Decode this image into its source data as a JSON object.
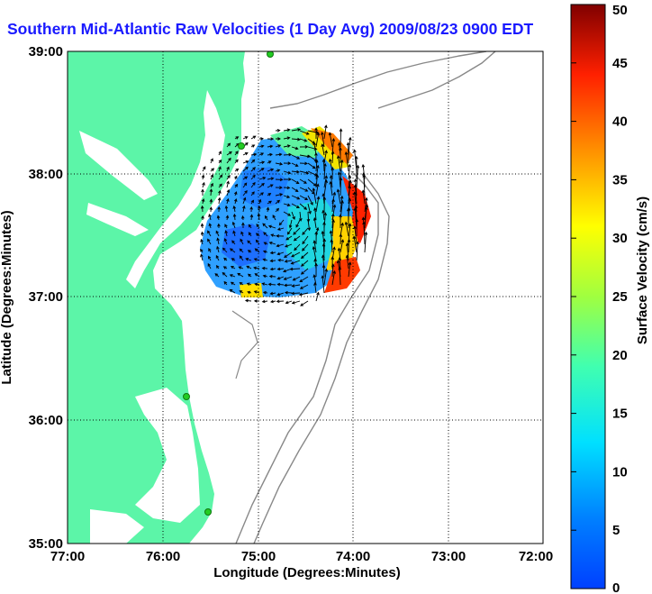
{
  "title": "Southern Mid-Atlantic Raw Velocities (1 Day Avg) 2009/08/23 0900 EDT",
  "map": {
    "xlabel": "Longitude (Degrees:Minutes)",
    "ylabel": "Latitude (Degrees:Minutes)",
    "x_ticks": [
      "77:00",
      "76:00",
      "75:00",
      "74:00",
      "73:00",
      "72:00"
    ],
    "y_ticks": [
      "39:00",
      "38:00",
      "37:00",
      "36:00",
      "35:00"
    ],
    "lon_range": [
      -77,
      -72
    ],
    "lat_range": [
      35,
      39
    ],
    "land_color": "#5cf5a8",
    "water_color": "#ffffff",
    "grid": true,
    "grid_style": "dotted",
    "arrow_color": "#000000",
    "station_color": "#22cc22"
  },
  "colorbar": {
    "label": "Surface Velocity (cm/s)",
    "ticks": [
      "50",
      "45",
      "40",
      "35",
      "30",
      "25",
      "20",
      "15",
      "10",
      "5",
      "0"
    ],
    "min": 0,
    "max": 50,
    "colormap": "jet"
  }
}
